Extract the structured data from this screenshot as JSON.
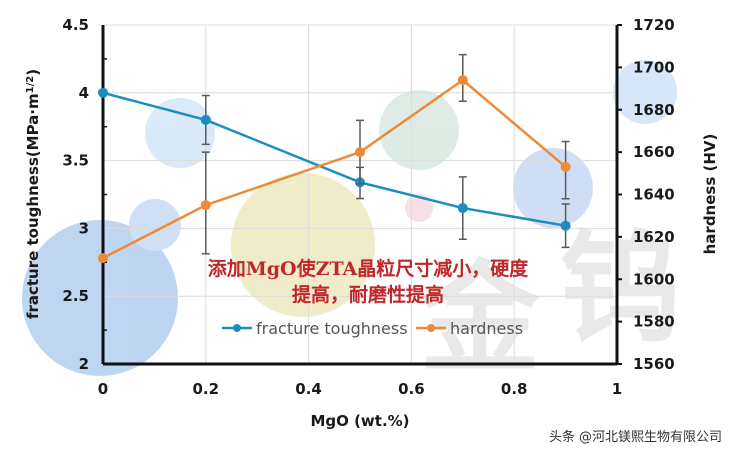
{
  "chart_data": {
    "type": "line",
    "title": "",
    "xlabel": "MgO (wt.%)",
    "ylabel": "fracture toughness(MPa·m1/2)",
    "ylabel_right": "hardness (HV)",
    "xlim": [
      0,
      1
    ],
    "ylim": [
      2,
      4.5
    ],
    "ylim_right": [
      1560,
      1720
    ],
    "x_ticks": [
      "0",
      "0.2",
      "0.4",
      "0.6",
      "0.8",
      "1"
    ],
    "y_ticks": [
      "2",
      "2.5",
      "3",
      "3.5",
      "4",
      "4.5"
    ],
    "y_ticks_right": [
      "1560",
      "1580",
      "1600",
      "1620",
      "1640",
      "1660",
      "1680",
      "1700",
      "1720"
    ],
    "grid": true,
    "legend_position": "bottom-center-inside",
    "x": [
      0,
      0.2,
      0.5,
      0.7,
      0.9
    ],
    "series": [
      {
        "name": "fracture toughness",
        "axis": "left",
        "color": "#1f8cc0",
        "values": [
          4.0,
          3.8,
          3.34,
          3.15,
          3.02
        ],
        "error_upper": [
          null,
          3.98,
          3.45,
          3.38,
          3.18
        ],
        "error_lower": [
          null,
          3.62,
          3.22,
          2.92,
          2.86
        ]
      },
      {
        "name": "hardness",
        "axis": "right",
        "color": "#ed8a3a",
        "values": [
          1610,
          1635,
          1660,
          1694,
          1653
        ],
        "error_upper": [
          null,
          1660,
          1675,
          1706,
          1665
        ],
        "error_lower": [
          null,
          1612,
          1645,
          1684,
          1638
        ]
      }
    ],
    "annotations": [
      "添加MgO使ZTA晶粒尺寸减小，硬度",
      "提高，耐磨性提高"
    ]
  },
  "labels": {
    "xlabel": "MgO (wt.%)",
    "ylabel_main": "fracture toughness(MPa·m",
    "ylabel_sup": "1/2",
    "ylabel_close": ")",
    "ylabel_right": "hardness (HV)",
    "legend_1": "fracture toughness",
    "legend_2": "hardness",
    "annotation_line1": "添加MgO使ZTA晶粒尺寸减小，硬度",
    "annotation_line2": "提高，耐磨性提高",
    "watermark": "头条 @河北镁熙生物有限公司",
    "bg_char_1": "金",
    "bg_char_2": "钨"
  },
  "colors": {
    "toughness": "#1f8cc0",
    "hardness": "#ed8a3a",
    "errorbar": "#5a5a5a",
    "grid": "#dcdcdc",
    "annotation": "#c0262a"
  }
}
